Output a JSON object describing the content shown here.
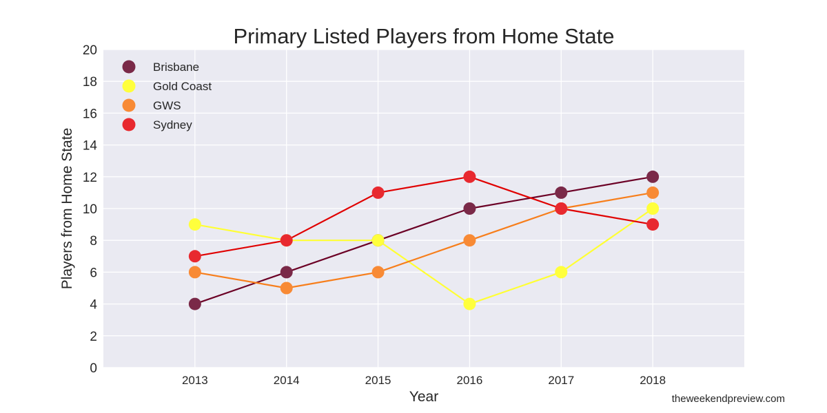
{
  "chart_data": {
    "type": "line",
    "title": "Primary Listed Players from Home State",
    "xlabel": "Year",
    "ylabel": "Players from Home State",
    "x": [
      2013,
      2014,
      2015,
      2016,
      2017,
      2018
    ],
    "xlim": [
      2012,
      2019
    ],
    "ylim": [
      0,
      20
    ],
    "yticks": [
      0,
      2,
      4,
      6,
      8,
      10,
      12,
      14,
      16,
      18,
      20
    ],
    "grid": true,
    "legend_position": "top-left",
    "background_color": "#EAEAF2",
    "series": [
      {
        "name": "Brisbane",
        "values": [
          4,
          6,
          8,
          10,
          11,
          12
        ],
        "line_color": "#6B0025",
        "marker_color": "#7A2948"
      },
      {
        "name": "Gold Coast",
        "values": [
          9,
          8,
          8,
          4,
          6,
          10
        ],
        "line_color": "#FFFF33",
        "marker_color": "#FFFF3C"
      },
      {
        "name": "GWS",
        "values": [
          6,
          5,
          6,
          8,
          10,
          11
        ],
        "line_color": "#F77E1B",
        "marker_color": "#F88A35"
      },
      {
        "name": "Sydney",
        "values": [
          7,
          8,
          11,
          12,
          10,
          9
        ],
        "line_color": "#E00000",
        "marker_color": "#E8292F"
      }
    ]
  },
  "watermark": "theweekendpreview.com"
}
